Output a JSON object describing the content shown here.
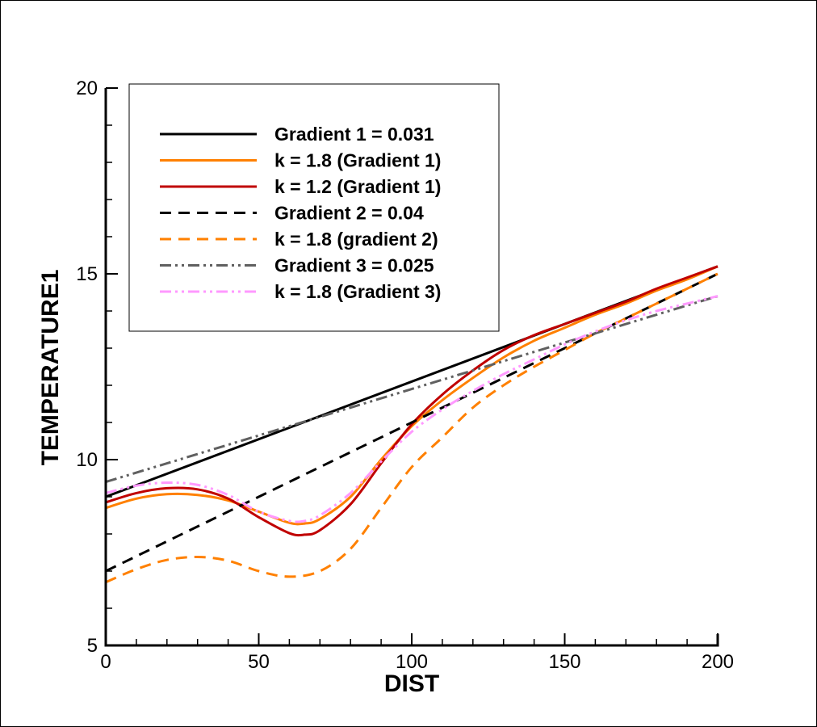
{
  "chart_data": {
    "type": "line",
    "xlabel": "DIST",
    "ylabel": "TEMPERATURE1",
    "xlim": [
      0,
      200
    ],
    "ylim": [
      5,
      20
    ],
    "xticks": [
      0,
      50,
      100,
      150,
      200
    ],
    "yticks": [
      5,
      10,
      15,
      20
    ],
    "x_minor_step": 10,
    "y_minor_step": 1,
    "legend_position": "top-left",
    "series": [
      {
        "name": "Gradient 1 = 0.031",
        "color": "#000000",
        "dash": "solid",
        "x": [
          0,
          200
        ],
        "y": [
          9.0,
          15.2
        ]
      },
      {
        "name": "k = 1.8 (Gradient 1)",
        "color": "#ff8000",
        "dash": "solid",
        "x": [
          0,
          10,
          20,
          30,
          40,
          50,
          60,
          65,
          70,
          80,
          90,
          100,
          110,
          120,
          130,
          140,
          150,
          160,
          170,
          180,
          190,
          200
        ],
        "y": [
          8.7,
          8.95,
          9.07,
          9.05,
          8.9,
          8.6,
          8.3,
          8.28,
          8.4,
          9.0,
          10.0,
          10.9,
          11.6,
          12.2,
          12.75,
          13.2,
          13.55,
          13.9,
          14.2,
          14.55,
          14.85,
          15.2
        ]
      },
      {
        "name": "k = 1.2 (Gradient 1)",
        "color": "#c00000",
        "dash": "solid",
        "x": [
          0,
          10,
          20,
          30,
          40,
          50,
          60,
          65,
          70,
          80,
          90,
          100,
          110,
          120,
          130,
          140,
          150,
          160,
          170,
          180,
          190,
          200
        ],
        "y": [
          8.85,
          9.1,
          9.23,
          9.2,
          8.95,
          8.45,
          8.02,
          7.98,
          8.1,
          8.8,
          9.9,
          10.95,
          11.75,
          12.4,
          12.95,
          13.35,
          13.65,
          13.95,
          14.25,
          14.6,
          14.9,
          15.2
        ]
      },
      {
        "name": "Gradient 2 = 0.04",
        "color": "#000000",
        "dash": "dashed",
        "x": [
          0,
          200
        ],
        "y": [
          7.0,
          15.0
        ]
      },
      {
        "name": "k = 1.8 (gradient 2)",
        "color": "#ff8000",
        "dash": "dashed",
        "x": [
          0,
          10,
          20,
          30,
          40,
          50,
          60,
          70,
          80,
          90,
          100,
          110,
          120,
          130,
          140,
          150,
          160,
          170,
          180,
          190,
          200
        ],
        "y": [
          6.7,
          7.05,
          7.3,
          7.38,
          7.28,
          7.0,
          6.85,
          7.0,
          7.6,
          8.7,
          9.8,
          10.6,
          11.4,
          12.0,
          12.5,
          12.95,
          13.4,
          13.8,
          14.2,
          14.6,
          15.0
        ]
      },
      {
        "name": "Gradient 3 = 0.025",
        "color": "#606060",
        "dash": "dashdotdot",
        "x": [
          0,
          200
        ],
        "y": [
          9.4,
          14.4
        ]
      },
      {
        "name": "k = 1.8 (Gradient 3)",
        "color": "#ff99ff",
        "dash": "dashdotdot",
        "x": [
          0,
          10,
          20,
          30,
          40,
          50,
          60,
          65,
          70,
          80,
          90,
          100,
          110,
          120,
          130,
          140,
          150,
          160,
          170,
          180,
          190,
          200
        ],
        "y": [
          9.1,
          9.3,
          9.38,
          9.32,
          9.05,
          8.6,
          8.35,
          8.35,
          8.5,
          9.1,
          9.95,
          10.75,
          11.35,
          11.85,
          12.3,
          12.7,
          13.1,
          13.45,
          13.75,
          14.0,
          14.2,
          14.4
        ]
      }
    ]
  }
}
